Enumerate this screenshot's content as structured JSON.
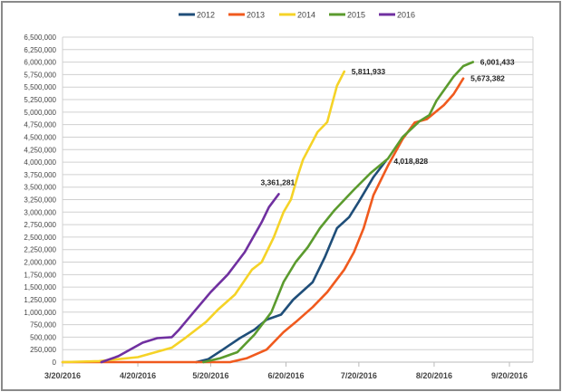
{
  "chart_data": {
    "type": "line",
    "title": "",
    "xlabel": "",
    "ylabel": "",
    "x_unit": "days after 3/20/2016",
    "xlim": [
      0,
      184
    ],
    "ylim": [
      0,
      6500000
    ],
    "y_step": 250000,
    "x_ticks": [
      {
        "day": 0,
        "label": "3/20/2016"
      },
      {
        "day": 31,
        "label": "4/20/2016"
      },
      {
        "day": 61,
        "label": "5/20/2016"
      },
      {
        "day": 92,
        "label": "6/20/2016"
      },
      {
        "day": 122,
        "label": "7/20/2016"
      },
      {
        "day": 153,
        "label": "8/20/2016"
      },
      {
        "day": 184,
        "label": "9/20/2016"
      }
    ],
    "y_tick_labels": [
      "0",
      "250,000",
      "500,000",
      "750,000",
      "1,000,000",
      "1,250,000",
      "1,500,000",
      "1,750,000",
      "2,000,000",
      "2,250,000",
      "2,500,000",
      "2,750,000",
      "3,000,000",
      "3,250,000",
      "3,500,000",
      "3,750,000",
      "4,000,000",
      "4,250,000",
      "4,500,000",
      "4,750,000",
      "5,000,000",
      "5,250,000",
      "5,500,000",
      "5,750,000",
      "6,000,000",
      "6,250,000",
      "6,500,000"
    ],
    "grid": true,
    "legend_position": "top",
    "series": [
      {
        "name": "2012",
        "color": "#1f4e79",
        "end_label": "4,018,828",
        "points": [
          [
            55,
            0
          ],
          [
            60,
            60000
          ],
          [
            66,
            250000
          ],
          [
            73,
            480000
          ],
          [
            79,
            650000
          ],
          [
            84,
            850000
          ],
          [
            90,
            950000
          ],
          [
            95,
            1250000
          ],
          [
            103,
            1600000
          ],
          [
            108,
            2100000
          ],
          [
            113,
            2680000
          ],
          [
            118,
            2900000
          ],
          [
            122,
            3210000
          ],
          [
            128,
            3700000
          ],
          [
            133,
            4018828
          ]
        ]
      },
      {
        "name": "2013",
        "color": "#f05a1e",
        "end_label": "5,673,382",
        "points": [
          [
            0,
            0
          ],
          [
            69,
            0
          ],
          [
            76,
            80000
          ],
          [
            84,
            250000
          ],
          [
            91,
            600000
          ],
          [
            96,
            800000
          ],
          [
            103,
            1100000
          ],
          [
            109,
            1400000
          ],
          [
            116,
            1850000
          ],
          [
            120,
            2200000
          ],
          [
            124,
            2680000
          ],
          [
            128,
            3340000
          ],
          [
            134,
            3930000
          ],
          [
            140,
            4460000
          ],
          [
            145,
            4790000
          ],
          [
            150,
            4860000
          ],
          [
            157,
            5140000
          ],
          [
            161,
            5360000
          ],
          [
            165,
            5673382
          ]
        ]
      },
      {
        "name": "2014",
        "color": "#f5d327",
        "end_label": "5,811,933",
        "points": [
          [
            0,
            0
          ],
          [
            15,
            20000
          ],
          [
            31,
            100000
          ],
          [
            45,
            290000
          ],
          [
            51,
            500000
          ],
          [
            59,
            800000
          ],
          [
            64,
            1050000
          ],
          [
            71,
            1350000
          ],
          [
            78,
            1850000
          ],
          [
            82,
            2000000
          ],
          [
            87,
            2500000
          ],
          [
            91,
            3000000
          ],
          [
            94,
            3250000
          ],
          [
            97,
            3750000
          ],
          [
            99,
            4050000
          ],
          [
            105,
            4600000
          ],
          [
            109,
            4800000
          ],
          [
            113,
            5530000
          ],
          [
            116,
            5811933
          ]
        ]
      },
      {
        "name": "2015",
        "color": "#5b9b2e",
        "end_label": "6,001,433",
        "points": [
          [
            58,
            0
          ],
          [
            65,
            80000
          ],
          [
            72,
            200000
          ],
          [
            79,
            550000
          ],
          [
            86,
            1000000
          ],
          [
            91,
            1600000
          ],
          [
            96,
            2000000
          ],
          [
            101,
            2300000
          ],
          [
            106,
            2680000
          ],
          [
            112,
            3040000
          ],
          [
            120,
            3450000
          ],
          [
            127,
            3790000
          ],
          [
            134,
            4070000
          ],
          [
            140,
            4500000
          ],
          [
            147,
            4820000
          ],
          [
            151,
            4940000
          ],
          [
            154,
            5230000
          ],
          [
            161,
            5710000
          ],
          [
            165,
            5920000
          ],
          [
            169,
            6001433
          ]
        ]
      },
      {
        "name": "2016",
        "color": "#7030a0",
        "end_label": "3,361,281",
        "points": [
          [
            16,
            0
          ],
          [
            23,
            120000
          ],
          [
            33,
            390000
          ],
          [
            39,
            480000
          ],
          [
            45,
            500000
          ],
          [
            48,
            650000
          ],
          [
            54,
            1000000
          ],
          [
            61,
            1400000
          ],
          [
            68,
            1750000
          ],
          [
            75,
            2200000
          ],
          [
            82,
            2800000
          ],
          [
            85,
            3100000
          ],
          [
            89,
            3361281
          ]
        ]
      }
    ]
  }
}
